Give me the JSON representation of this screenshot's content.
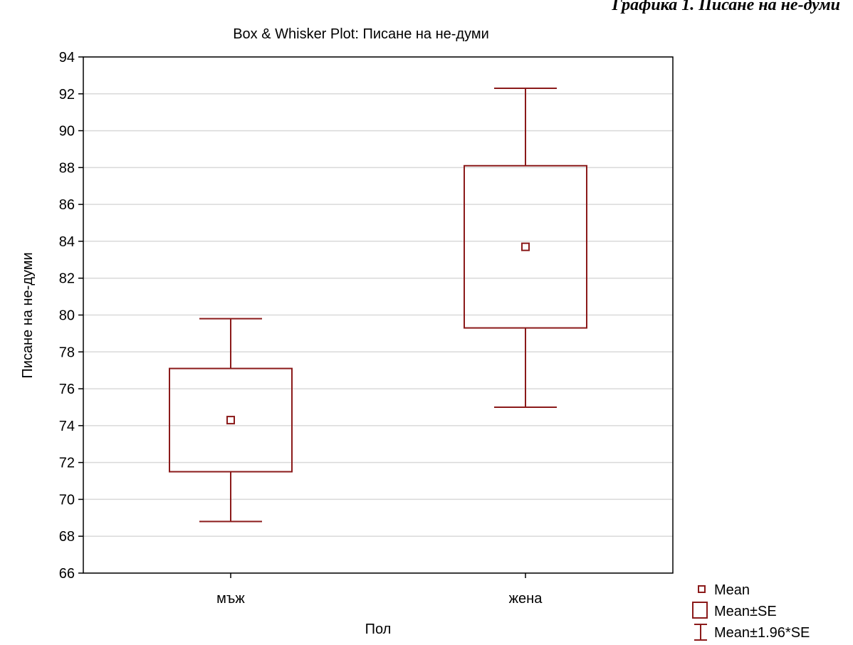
{
  "caption": "Графика 1. Писане на не-думи",
  "chart_data": {
    "type": "box",
    "title": "Box & Whisker Plot: Писане на не-думи",
    "xlabel": "Пол",
    "ylabel": "Писане на не-думи",
    "ylim": [
      66,
      94
    ],
    "yticks": [
      66,
      68,
      70,
      72,
      74,
      76,
      78,
      80,
      82,
      84,
      86,
      88,
      90,
      92,
      94
    ],
    "categories": [
      "мъж",
      "жена"
    ],
    "mean": [
      74.3,
      83.7
    ],
    "se_low": [
      71.5,
      79.3
    ],
    "se_high": [
      77.1,
      88.1
    ],
    "ci_low": [
      68.8,
      75.0
    ],
    "ci_high": [
      79.8,
      92.3
    ],
    "color": "#8b1a1a",
    "grid": true,
    "legend": {
      "placement": "bottom-right",
      "entries": [
        "Mean",
        "Mean±SE",
        "Mean±1.96*SE"
      ]
    }
  }
}
